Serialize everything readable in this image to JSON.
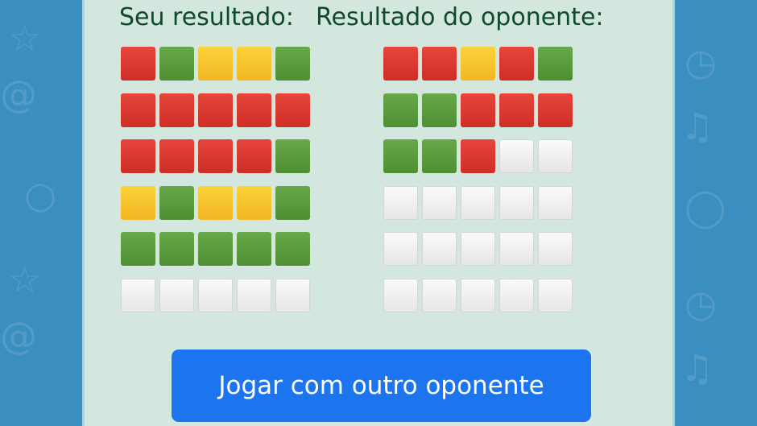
{
  "your_result_label": "Seu resultado:",
  "opponent_result_label": "Resultado do oponente:",
  "play_button_label": "Jogar com outro oponente",
  "colors": {
    "background": "#3b8ec0",
    "panel": "#d3e7df",
    "red": "#d93a32",
    "green": "#5a9e3c",
    "yellow": "#f5c12a",
    "empty": "#f0f0f0",
    "button": "#1c74ee"
  },
  "legend": {
    "R": "red",
    "G": "green",
    "Y": "yellow",
    "E": "empty"
  },
  "your_grid": [
    [
      "R",
      "G",
      "Y",
      "Y",
      "G"
    ],
    [
      "R",
      "R",
      "R",
      "R",
      "R"
    ],
    [
      "R",
      "R",
      "R",
      "R",
      "G"
    ],
    [
      "Y",
      "G",
      "Y",
      "Y",
      "G"
    ],
    [
      "G",
      "G",
      "G",
      "G",
      "G"
    ],
    [
      "E",
      "E",
      "E",
      "E",
      "E"
    ]
  ],
  "opponent_grid": [
    [
      "R",
      "R",
      "Y",
      "R",
      "G"
    ],
    [
      "G",
      "G",
      "R",
      "R",
      "R"
    ],
    [
      "G",
      "G",
      "R",
      "E",
      "E"
    ],
    [
      "E",
      "E",
      "E",
      "E",
      "E"
    ],
    [
      "E",
      "E",
      "E",
      "E",
      "E"
    ],
    [
      "E",
      "E",
      "E",
      "E",
      "E"
    ]
  ]
}
